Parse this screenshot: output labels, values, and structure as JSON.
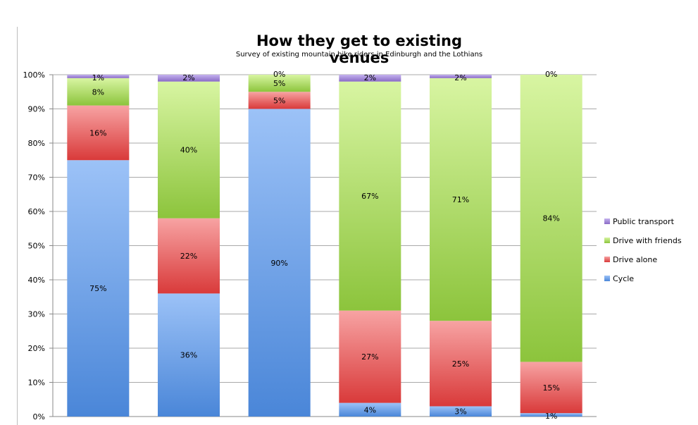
{
  "chart_data": {
    "type": "bar",
    "stacked": true,
    "title": "How they get to existing venues",
    "subtitle": "Survey of existing mountain bike riders in Edinburgh and the Lothians",
    "categories": [
      "",
      "",
      "",
      "",
      "",
      ""
    ],
    "ylim": [
      0,
      100
    ],
    "y_ticks": [
      "0%",
      "10%",
      "20%",
      "30%",
      "40%",
      "50%",
      "60%",
      "70%",
      "80%",
      "90%",
      "100%"
    ],
    "grid": true,
    "legend_position": "right",
    "series": [
      {
        "name": "Cycle",
        "color": "#4a86d8",
        "color_light": "#9cc2f7",
        "values": [
          75,
          36,
          90,
          4,
          3,
          1
        ]
      },
      {
        "name": "Drive alone",
        "color": "#d93a3a",
        "color_light": "#f7a3a3",
        "values": [
          16,
          22,
          5,
          27,
          25,
          15
        ]
      },
      {
        "name": "Drive with friends",
        "color": "#8cc43c",
        "color_light": "#d8f5a2",
        "values": [
          8,
          40,
          5,
          67,
          71,
          84
        ]
      },
      {
        "name": "Public transport",
        "color": "#8a6bc6",
        "color_light": "#c4b2ee",
        "values": [
          1,
          2,
          0,
          2,
          2,
          0
        ]
      }
    ],
    "data_labels": [
      [
        "75%",
        "16%",
        "8%",
        "1%"
      ],
      [
        "36%",
        "22%",
        "40%",
        "2%"
      ],
      [
        "90%",
        "5%",
        "5%",
        "0%"
      ],
      [
        "4%",
        "27%",
        "67%",
        "2%"
      ],
      [
        "3%",
        "25%",
        "71%",
        "2%"
      ],
      [
        "1%",
        "15%",
        "84%",
        "0%"
      ]
    ]
  }
}
